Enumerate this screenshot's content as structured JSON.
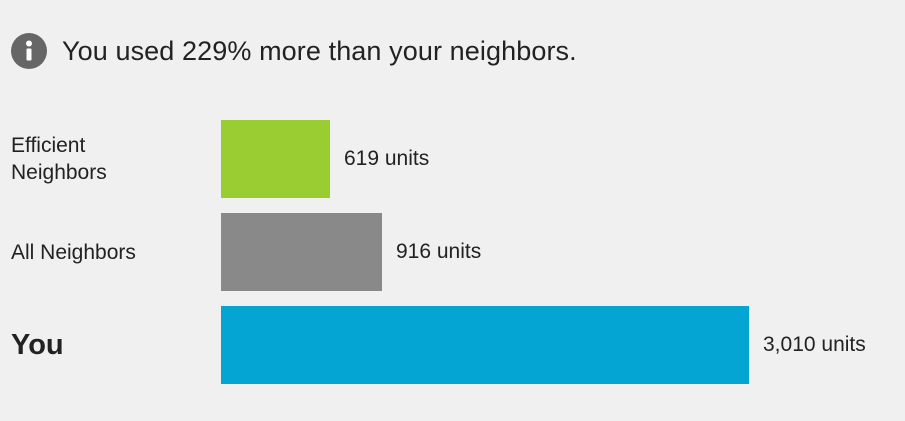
{
  "header": {
    "icon": "info-icon",
    "text": "You used 229% more than your neighbors."
  },
  "chart_data": {
    "type": "bar",
    "orientation": "horizontal",
    "categories": [
      "Efficient Neighbors",
      "All Neighbors",
      "You"
    ],
    "values": [
      619,
      916,
      3010
    ],
    "value_labels": [
      "619 units",
      "916 units",
      "3,010 units"
    ],
    "colors": [
      "#9acd32",
      "#898989",
      "#04a5d3"
    ],
    "title": "",
    "xlabel": "",
    "ylabel": "",
    "grid": false,
    "legend": "none"
  }
}
